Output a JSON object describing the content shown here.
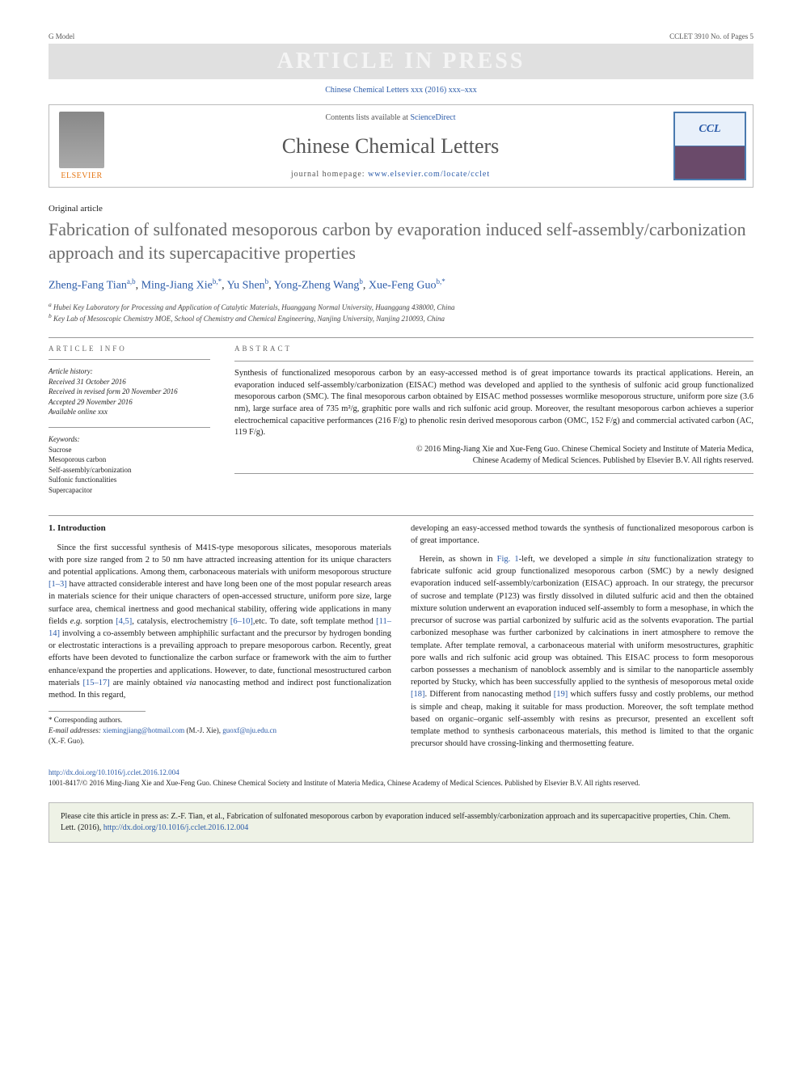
{
  "gmodel": {
    "left": "G Model",
    "right": "CCLET 3910 No. of Pages 5"
  },
  "pressBanner": "ARTICLE IN PRESS",
  "citationTop": "Chinese Chemical Letters xxx (2016) xxx–xxx",
  "journalBox": {
    "contentsPrefix": "Contents lists available at ",
    "contentsLink": "ScienceDirect",
    "journalName": "Chinese Chemical Letters",
    "homepagePrefix": "journal homepage: ",
    "homepageUrl": "www.elsevier.com/locate/cclet",
    "elsevierLabel": "ELSEVIER",
    "cclLabel": "CCL"
  },
  "articleType": "Original article",
  "title": "Fabrication of sulfonated mesoporous carbon by evaporation induced self-assembly/carbonization approach and its supercapacitive properties",
  "authors": [
    {
      "name": "Zheng-Fang Tian",
      "sup": "a,b"
    },
    {
      "name": "Ming-Jiang Xie",
      "sup": "b,*"
    },
    {
      "name": "Yu Shen",
      "sup": "b"
    },
    {
      "name": "Yong-Zheng Wang",
      "sup": "b"
    },
    {
      "name": "Xue-Feng Guo",
      "sup": "b,*"
    }
  ],
  "affiliations": {
    "a": "Hubei Key Laboratory for Processing and Application of Catalytic Materials, Huanggang Normal University, Huanggang 438000, China",
    "b": "Key Lab of Mesoscopic Chemistry MOE, School of Chemistry and Chemical Engineering, Nanjing University, Nanjing 210093, China"
  },
  "articleInfo": {
    "head": "ARTICLE INFO",
    "historyLabel": "Article history:",
    "received": "Received 31 October 2016",
    "revised": "Received in revised form 20 November 2016",
    "accepted": "Accepted 29 November 2016",
    "online": "Available online xxx",
    "keywordsLabel": "Keywords:",
    "keywords": [
      "Sucrose",
      "Mesoporous carbon",
      "Self-assembly/carbonization",
      "Sulfonic functionalities",
      "Supercapacitor"
    ]
  },
  "abstract": {
    "head": "ABSTRACT",
    "body": "Synthesis of functionalized mesoporous carbon by an easy-accessed method is of great importance towards its practical applications. Herein, an evaporation induced self-assembly/carbonization (EISAC) method was developed and applied to the synthesis of sulfonic acid group functionalized mesoporous carbon (SMC). The final mesoporous carbon obtained by EISAC method possesses wormlike mesoporous structure, uniform pore size (3.6 nm), large surface area of 735 m²/g, graphitic pore walls and rich sulfonic acid group. Moreover, the resultant mesoporous carbon achieves a superior electrochemical capacitive performances (216 F/g) to phenolic resin derived mesoporous carbon (OMC, 152 F/g) and commercial activated carbon (AC, 119 F/g).",
    "copyrightLine1": "© 2016 Ming-Jiang Xie and Xue-Feng Guo. Chinese Chemical Society and Institute of Materia Medica,",
    "copyrightLine2": "Chinese Academy of Medical Sciences. Published by Elsevier B.V. All rights reserved."
  },
  "body": {
    "sectionHead": "1. Introduction",
    "colLeft": [
      "Since the first successful synthesis of M41S-type mesoporous silicates, mesoporous materials with pore size ranged from 2 to 50 nm have attracted increasing attention for its unique characters and potential applications. Among them, carbonaceous materials with uniform mesoporous structure [1–3] have attracted considerable interest and have long been one of the most popular research areas in materials science for their unique characters of open-accessed structure, uniform pore size, large surface area, chemical inertness and good mechanical stability, offering wide applications in many fields e.g. sorption [4,5], catalysis, electrochemistry [6–10],etc. To date, soft template method [11–14] involving a co-assembly between amphiphilic surfactant and the precursor by hydrogen bonding or electrostatic interactions is a prevailing approach to prepare mesoporous carbon. Recently, great efforts have been devoted to functionalize the carbon surface or framework with the aim to further enhance/expand the properties and applications. However, to date, functional mesostructured carbon materials [15–17] are mainly obtained via nanocasting method and indirect post functionalization method. In this regard,"
    ],
    "colRight": [
      "developing an easy-accessed method towards the synthesis of functionalized mesoporous carbon is of great importance.",
      "Herein, as shown in Fig. 1-left, we developed a simple in situ functionalization strategy to fabricate sulfonic acid group functionalized mesoporous carbon (SMC) by a newly designed evaporation induced self-assembly/carbonization (EISAC) approach. In our strategy, the precursor of sucrose and template (P123) was firstly dissolved in diluted sulfuric acid and then the obtained mixture solution underwent an evaporation induced self-assembly to form a mesophase, in which the precursor of sucrose was partial carbonized by sulfuric acid as the solvents evaporation. The partial carbonized mesophase was further carbonized by calcinations in inert atmosphere to remove the template. After template removal, a carbonaceous material with uniform mesostructures, graphitic pore walls and rich sulfonic acid group was obtained. This EISAC process to form mesoporous carbon possesses a mechanism of nanoblock assembly and is similar to the nanoparticle assembly reported by Stucky, which has been successfully applied to the synthesis of mesoporous metal oxide [18]. Different from nanocasting method [19] which suffers fussy and costly problems, our method is simple and cheap, making it suitable for mass production. Moreover, the soft template method based on organic–organic self-assembly with resins as precursor, presented an excellent soft template method to synthesis carbonaceous materials, this method is limited to that the organic precursor should have crossing-linking and thermosetting feature."
    ],
    "refs": {
      "r1": "[1–3]",
      "r2": "[4,5]",
      "r3": "[6–10]",
      "r4": "[11–14]",
      "r5": "[15–17]",
      "r6": "Fig. 1",
      "r7": "[18]",
      "r8": "[19]"
    }
  },
  "footnotes": {
    "corrLabel": "* Corresponding authors.",
    "emailLabel": "E-mail addresses:",
    "email1": "xiemingjiang@hotmail.com",
    "email1who": " (M.-J. Xie), ",
    "email2": "guoxf@nju.edu.cn",
    "email2who": "(X.-F. Guo)."
  },
  "doi": {
    "url": "http://dx.doi.org/10.1016/j.cclet.2016.12.004",
    "copy": "1001-8417/© 2016 Ming-Jiang Xie and Xue-Feng Guo. Chinese Chemical Society and Institute of Materia Medica, Chinese Academy of Medical Sciences. Published by Elsevier B.V. All rights reserved."
  },
  "citeBox": {
    "prefix": "Please cite this article in press as: Z.-F. Tian, et al., Fabrication of sulfonated mesoporous carbon by evaporation induced self-assembly/carbonization approach and its supercapacitive properties, Chin. Chem. Lett. (2016), ",
    "url": "http://dx.doi.org/10.1016/j.cclet.2016.12.004"
  },
  "colors": {
    "link": "#2a5aa8",
    "titleText": "#6a6a6a",
    "bannerBg": "#e0e0e0",
    "citeBoxBg": "#eef2e6",
    "elsevierOrange": "#e67817"
  }
}
